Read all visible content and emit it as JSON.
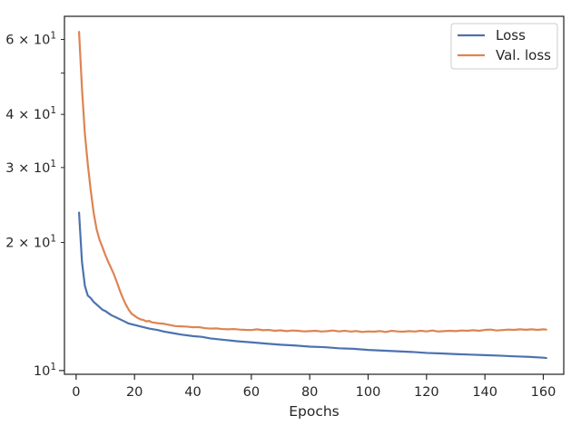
{
  "chart_data": {
    "type": "line",
    "title": "",
    "xlabel": "Epochs",
    "ylabel": "",
    "yscale": "log",
    "xlim": [
      -4,
      167
    ],
    "ylim": [
      9.8,
      68
    ],
    "grid": false,
    "legend_position": "top-right",
    "x_ticks": [
      {
        "value": 0,
        "label": "0"
      },
      {
        "value": 20,
        "label": "20"
      },
      {
        "value": 40,
        "label": "40"
      },
      {
        "value": 60,
        "label": "60"
      },
      {
        "value": 80,
        "label": "80"
      },
      {
        "value": 100,
        "label": "100"
      },
      {
        "value": 120,
        "label": "120"
      },
      {
        "value": 140,
        "label": "140"
      },
      {
        "value": 160,
        "label": "160"
      }
    ],
    "y_ticks": [
      {
        "value": 10,
        "base": "10",
        "exp": "1",
        "coef": ""
      },
      {
        "value": 20,
        "base": "10",
        "exp": "1",
        "coef": "2 × "
      },
      {
        "value": 30,
        "base": "10",
        "exp": "1",
        "coef": "3 × "
      },
      {
        "value": 40,
        "base": "10",
        "exp": "1",
        "coef": "4 × "
      },
      {
        "value": 60,
        "base": "10",
        "exp": "1",
        "coef": "6 × "
      }
    ],
    "y_minor_ticks": [
      50
    ],
    "series": [
      {
        "name": "Loss",
        "color": "#4c72b0",
        "points": [
          [
            1,
            23.5
          ],
          [
            2,
            18.0
          ],
          [
            3,
            15.8
          ],
          [
            4,
            15.0
          ],
          [
            5,
            14.8
          ],
          [
            6,
            14.5
          ],
          [
            7,
            14.3
          ],
          [
            8,
            14.1
          ],
          [
            9,
            13.9
          ],
          [
            10,
            13.8
          ],
          [
            12,
            13.5
          ],
          [
            14,
            13.3
          ],
          [
            16,
            13.1
          ],
          [
            18,
            12.9
          ],
          [
            20,
            12.8
          ],
          [
            22,
            12.7
          ],
          [
            25,
            12.55
          ],
          [
            28,
            12.45
          ],
          [
            30,
            12.35
          ],
          [
            33,
            12.25
          ],
          [
            36,
            12.15
          ],
          [
            40,
            12.05
          ],
          [
            43,
            12.0
          ],
          [
            46,
            11.9
          ],
          [
            50,
            11.82
          ],
          [
            55,
            11.72
          ],
          [
            60,
            11.65
          ],
          [
            65,
            11.57
          ],
          [
            70,
            11.5
          ],
          [
            75,
            11.45
          ],
          [
            80,
            11.38
          ],
          [
            85,
            11.35
          ],
          [
            90,
            11.28
          ],
          [
            95,
            11.25
          ],
          [
            100,
            11.18
          ],
          [
            105,
            11.14
          ],
          [
            110,
            11.1
          ],
          [
            115,
            11.06
          ],
          [
            120,
            11.0
          ],
          [
            125,
            10.97
          ],
          [
            130,
            10.93
          ],
          [
            135,
            10.9
          ],
          [
            140,
            10.87
          ],
          [
            145,
            10.84
          ],
          [
            150,
            10.8
          ],
          [
            155,
            10.77
          ],
          [
            160,
            10.72
          ],
          [
            161,
            10.7
          ]
        ]
      },
      {
        "name": "Val. loss",
        "color": "#dd8452",
        "points": [
          [
            1,
            62.5
          ],
          [
            2,
            46.0
          ],
          [
            3,
            36.0
          ],
          [
            4,
            30.5
          ],
          [
            5,
            26.5
          ],
          [
            6,
            23.5
          ],
          [
            7,
            21.5
          ],
          [
            8,
            20.3
          ],
          [
            9,
            19.5
          ],
          [
            10,
            18.7
          ],
          [
            11,
            18.0
          ],
          [
            12,
            17.4
          ],
          [
            13,
            16.8
          ],
          [
            14,
            16.1
          ],
          [
            15,
            15.4
          ],
          [
            16,
            14.8
          ],
          [
            17,
            14.3
          ],
          [
            18,
            13.9
          ],
          [
            19,
            13.6
          ],
          [
            20,
            13.45
          ],
          [
            21,
            13.3
          ],
          [
            22,
            13.2
          ],
          [
            23,
            13.15
          ],
          [
            24,
            13.05
          ],
          [
            25,
            13.08
          ],
          [
            26,
            12.98
          ],
          [
            28,
            12.92
          ],
          [
            30,
            12.88
          ],
          [
            32,
            12.8
          ],
          [
            34,
            12.72
          ],
          [
            36,
            12.7
          ],
          [
            38,
            12.68
          ],
          [
            40,
            12.64
          ],
          [
            42,
            12.65
          ],
          [
            44,
            12.58
          ],
          [
            46,
            12.55
          ],
          [
            48,
            12.56
          ],
          [
            50,
            12.52
          ],
          [
            52,
            12.5
          ],
          [
            54,
            12.52
          ],
          [
            56,
            12.48
          ],
          [
            58,
            12.46
          ],
          [
            60,
            12.45
          ],
          [
            62,
            12.5
          ],
          [
            64,
            12.44
          ],
          [
            66,
            12.46
          ],
          [
            68,
            12.4
          ],
          [
            70,
            12.43
          ],
          [
            72,
            12.38
          ],
          [
            74,
            12.42
          ],
          [
            76,
            12.4
          ],
          [
            78,
            12.36
          ],
          [
            80,
            12.38
          ],
          [
            82,
            12.4
          ],
          [
            84,
            12.35
          ],
          [
            86,
            12.38
          ],
          [
            88,
            12.42
          ],
          [
            90,
            12.36
          ],
          [
            92,
            12.4
          ],
          [
            94,
            12.35
          ],
          [
            96,
            12.38
          ],
          [
            98,
            12.32
          ],
          [
            100,
            12.36
          ],
          [
            102,
            12.34
          ],
          [
            104,
            12.38
          ],
          [
            106,
            12.32
          ],
          [
            108,
            12.4
          ],
          [
            110,
            12.36
          ],
          [
            112,
            12.34
          ],
          [
            114,
            12.38
          ],
          [
            116,
            12.35
          ],
          [
            118,
            12.4
          ],
          [
            120,
            12.36
          ],
          [
            122,
            12.42
          ],
          [
            124,
            12.35
          ],
          [
            126,
            12.38
          ],
          [
            128,
            12.4
          ],
          [
            130,
            12.38
          ],
          [
            132,
            12.42
          ],
          [
            134,
            12.4
          ],
          [
            136,
            12.44
          ],
          [
            138,
            12.4
          ],
          [
            140,
            12.46
          ],
          [
            142,
            12.48
          ],
          [
            144,
            12.42
          ],
          [
            146,
            12.45
          ],
          [
            148,
            12.48
          ],
          [
            150,
            12.46
          ],
          [
            152,
            12.5
          ],
          [
            154,
            12.47
          ],
          [
            156,
            12.5
          ],
          [
            158,
            12.46
          ],
          [
            160,
            12.5
          ],
          [
            161,
            12.48
          ]
        ]
      }
    ]
  }
}
